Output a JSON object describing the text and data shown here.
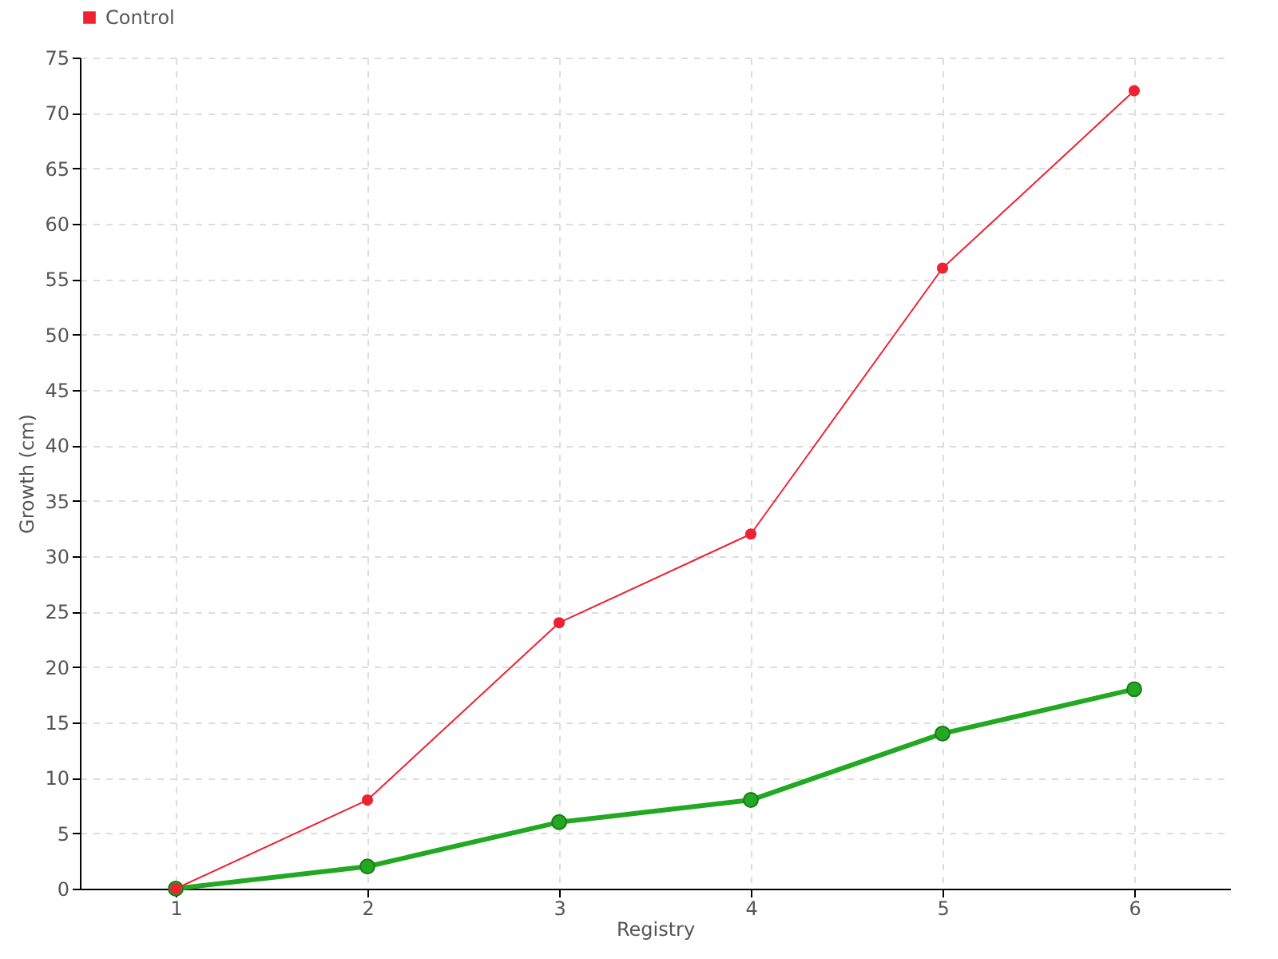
{
  "chart_data": {
    "type": "line",
    "xlabel": "Registry",
    "ylabel": "Growth (cm)",
    "x": [
      1,
      2,
      3,
      4,
      5,
      6
    ],
    "series": [
      {
        "color": "#22a822",
        "values": [
          0,
          2,
          6,
          8,
          14,
          18
        ]
      },
      {
        "name": "Control",
        "color": "#ee2233",
        "values": [
          0,
          8,
          24,
          32,
          56,
          72
        ]
      }
    ],
    "xlim": [
      0.5,
      6.5
    ],
    "xticks": [
      1,
      2,
      3,
      4,
      5,
      6
    ],
    "ylim": [
      0,
      75
    ],
    "yticks": [
      0,
      5,
      10,
      15,
      20,
      25,
      30,
      35,
      40,
      45,
      50,
      55,
      60,
      65,
      70,
      75
    ],
    "grid": true,
    "legend": "top left",
    "marker": "circle",
    "line_style": "solid"
  }
}
